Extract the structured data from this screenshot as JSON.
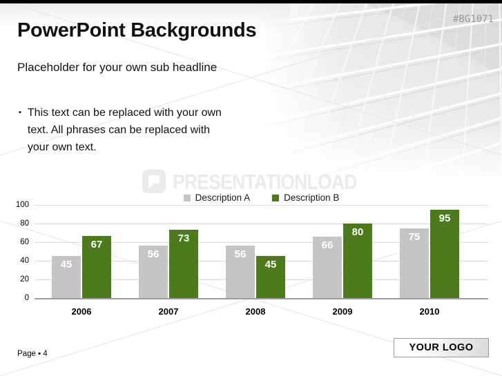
{
  "slide": {
    "stock_id": "#BG1071",
    "title": "PowerPoint Backgrounds",
    "subtitle": "Placeholder for your own sub headline",
    "bullet_glyph": "▪",
    "bullet_text": "This text can be replaced with your own text. All phrases can be replaced with your own text.",
    "watermark_text": "PRESENTATIONLOAD",
    "footer": {
      "page_label": "Page ▪ 4"
    },
    "logo_placeholder": "YOUR LOGO"
  },
  "colors": {
    "series_a": "#c5c5c5",
    "series_b": "#4e7a1e",
    "gridline": "#dadada",
    "axis": "#9e9e9e",
    "watermark": "#ebebeb",
    "stock_id_text": "#999999"
  },
  "chart_data": {
    "type": "bar",
    "title": "",
    "categories": [
      "2006",
      "2007",
      "2008",
      "2009",
      "2010"
    ],
    "series": [
      {
        "name": "Description A",
        "color": "#c5c5c5",
        "values": [
          45,
          56,
          56,
          66,
          75
        ]
      },
      {
        "name": "Description B",
        "color": "#4e7a1e",
        "values": [
          67,
          73,
          45,
          80,
          95
        ]
      }
    ],
    "xlabel": "",
    "ylabel": "",
    "ylim": [
      0,
      100
    ],
    "yticks": [
      0,
      20,
      40,
      60,
      80,
      100
    ],
    "grid": true,
    "legend_position": "top-center",
    "value_label_style": "white bold, inside top of bar"
  }
}
